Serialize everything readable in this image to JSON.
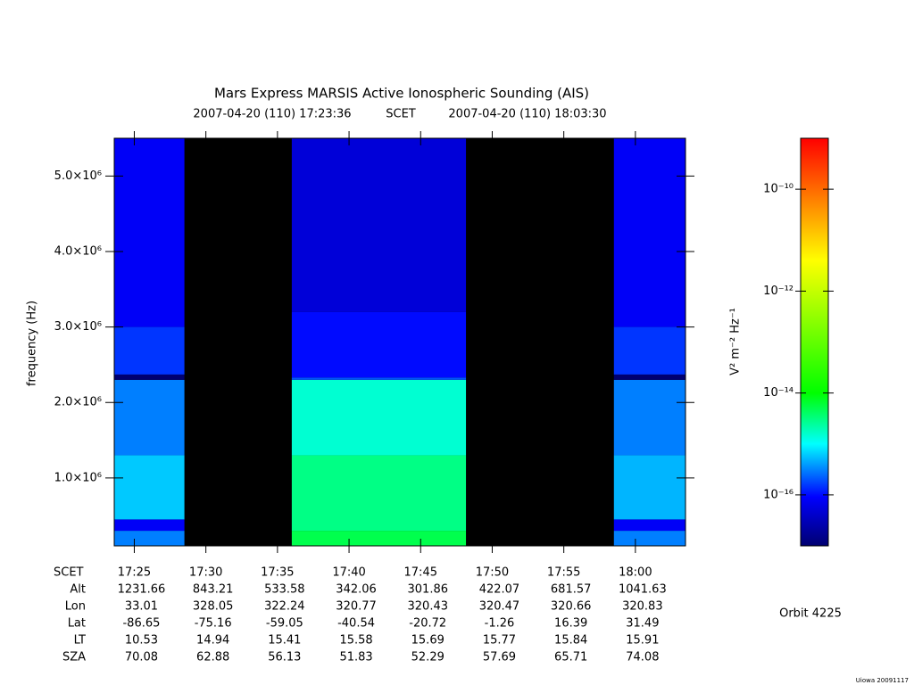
{
  "chart_data": {
    "type": "spectrogram",
    "title": "Mars Express MARSIS Active Ionospheric Sounding (AIS)",
    "start_time": "2007-04-20 (110) 17:23:36",
    "time_label": "SCET",
    "end_time": "2007-04-20 (110) 18:03:30",
    "ylabel": "frequency (Hz)",
    "xlim": [
      "17:23:36",
      "18:03:30"
    ],
    "xlabel": "SCET",
    "xticks": [
      "17:25",
      "17:30",
      "17:35",
      "17:40",
      "17:45",
      "17:50",
      "17:55",
      "18:00"
    ],
    "ylim": [
      100000,
      5500000
    ],
    "yticks": [
      {
        "value": 1000000,
        "label": "1.0×10⁶"
      },
      {
        "value": 2000000,
        "label": "2.0×10⁶"
      },
      {
        "value": 3000000,
        "label": "3.0×10⁶"
      },
      {
        "value": 4000000,
        "label": "4.0×10⁶"
      },
      {
        "value": 5000000,
        "label": "5.0×10⁶"
      }
    ],
    "colorbar_label": "V² m⁻² Hz⁻¹",
    "clim": [
      1e-17,
      1e-09
    ],
    "color_scale": "log",
    "colormap": [
      [
        0,
        "#000070"
      ],
      [
        0.12,
        "#0000ff"
      ],
      [
        0.25,
        "#00ffff"
      ],
      [
        0.375,
        "#00ff00"
      ],
      [
        0.7,
        "#ffff00"
      ],
      [
        1,
        "#ff0000"
      ]
    ],
    "cticks": [
      {
        "value": 1e-16,
        "label": "10⁻¹⁶"
      },
      {
        "value": 1e-14,
        "label": "10⁻¹⁴"
      },
      {
        "value": 1e-12,
        "label": "10⁻¹²"
      },
      {
        "value": 1e-10,
        "label": "10⁻¹⁰"
      }
    ],
    "segments": [
      {
        "start": "17:23:36",
        "end": "17:28:30",
        "bands": [
          {
            "freq": [
              100000,
              300000
            ],
            "value": 3e-16
          },
          {
            "freq": [
              300000,
              450000
            ],
            "value": 8e-17
          },
          {
            "freq": [
              450000,
              1300000
            ],
            "value": 6e-16
          },
          {
            "freq": [
              1300000,
              2300000
            ],
            "value": 3e-16
          },
          {
            "freq": [
              2300000,
              2370000
            ],
            "value": 1e-17
          },
          {
            "freq": [
              2370000,
              3000000
            ],
            "value": 1.5e-16
          },
          {
            "freq": [
              3000000,
              5500000
            ],
            "value": 8e-17
          }
        ]
      },
      {
        "start": "17:36:00",
        "end": "17:48:10",
        "bands": [
          {
            "freq": [
              100000,
              300000
            ],
            "value": 5e-15
          },
          {
            "freq": [
              300000,
              1300000
            ],
            "value": 3e-15
          },
          {
            "freq": [
              1300000,
              2300000
            ],
            "value": 1.5e-15
          },
          {
            "freq": [
              2300000,
              2330000
            ],
            "value": 2e-16
          },
          {
            "freq": [
              2330000,
              3200000
            ],
            "value": 1e-16
          },
          {
            "freq": [
              3200000,
              5500000
            ],
            "value": 5e-17
          }
        ]
      },
      {
        "start": "17:58:30",
        "end": "18:03:30",
        "bands": [
          {
            "freq": [
              100000,
              300000
            ],
            "value": 3e-16
          },
          {
            "freq": [
              300000,
              450000
            ],
            "value": 8e-17
          },
          {
            "freq": [
              450000,
              1300000
            ],
            "value": 5e-16
          },
          {
            "freq": [
              1300000,
              2300000
            ],
            "value": 3e-16
          },
          {
            "freq": [
              2300000,
              2370000
            ],
            "value": 1e-17
          },
          {
            "freq": [
              2370000,
              3000000
            ],
            "value": 1.5e-16
          },
          {
            "freq": [
              3000000,
              5500000
            ],
            "value": 8e-17
          }
        ]
      }
    ],
    "ephemeris": [
      {
        "name": "Alt",
        "values": [
          1231.66,
          843.21,
          533.58,
          342.06,
          301.86,
          422.07,
          681.57,
          1041.63
        ]
      },
      {
        "name": "Lon",
        "values": [
          33.01,
          328.05,
          322.24,
          320.77,
          320.43,
          320.47,
          320.66,
          320.83
        ]
      },
      {
        "name": "Lat",
        "values": [
          -86.65,
          -75.16,
          -59.05,
          -40.54,
          -20.72,
          -1.26,
          16.39,
          31.49
        ]
      },
      {
        "name": "LT",
        "values": [
          10.53,
          14.94,
          15.41,
          15.58,
          15.69,
          15.77,
          15.84,
          15.91
        ]
      },
      {
        "name": "SZA",
        "values": [
          70.08,
          62.88,
          56.13,
          51.83,
          52.29,
          57.69,
          65.71,
          74.08
        ]
      }
    ],
    "orbit": "Orbit 4225",
    "credit": "Uiowa 20091117"
  }
}
